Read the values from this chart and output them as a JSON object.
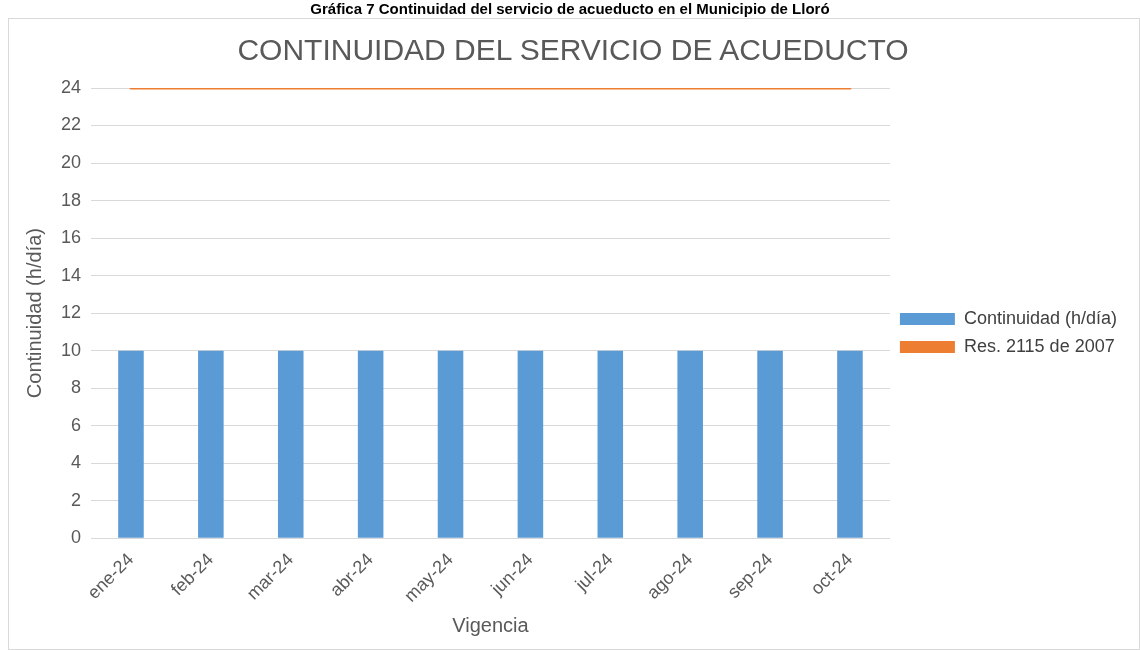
{
  "chart_data": {
    "type": "bar",
    "title": "CONTINUIDAD DEL SERVICIO DE ACUEDUCTO",
    "annotations": [
      "Gráfica 7 Continuidad del servicio de acueducto en el Municipio de Lloró"
    ],
    "xlabel": "Vigencia",
    "ylabel": "Continuidad (h/día)",
    "categories": [
      "ene-24",
      "feb-24",
      "mar-24",
      "abr-24",
      "may-24",
      "jun-24",
      "jul-24",
      "ago-24",
      "sep-24",
      "oct-24"
    ],
    "series": [
      {
        "name": "Continuidad (h/día)",
        "color": "#5b9bd5",
        "values": [
          10,
          10,
          10,
          10,
          10,
          10,
          10,
          10,
          10,
          10
        ]
      },
      {
        "name": "Res. 2115 de 2007",
        "type": "line",
        "color": "#ed7d31",
        "values": [
          24,
          24,
          24,
          24,
          24,
          24,
          24,
          24,
          24,
          24
        ]
      }
    ],
    "ylim": [
      0,
      24
    ],
    "yticks": [
      0,
      2,
      4,
      6,
      8,
      10,
      12,
      14,
      16,
      18,
      20,
      22,
      24
    ],
    "grid": "y",
    "legend": "right",
    "marker": "none"
  }
}
